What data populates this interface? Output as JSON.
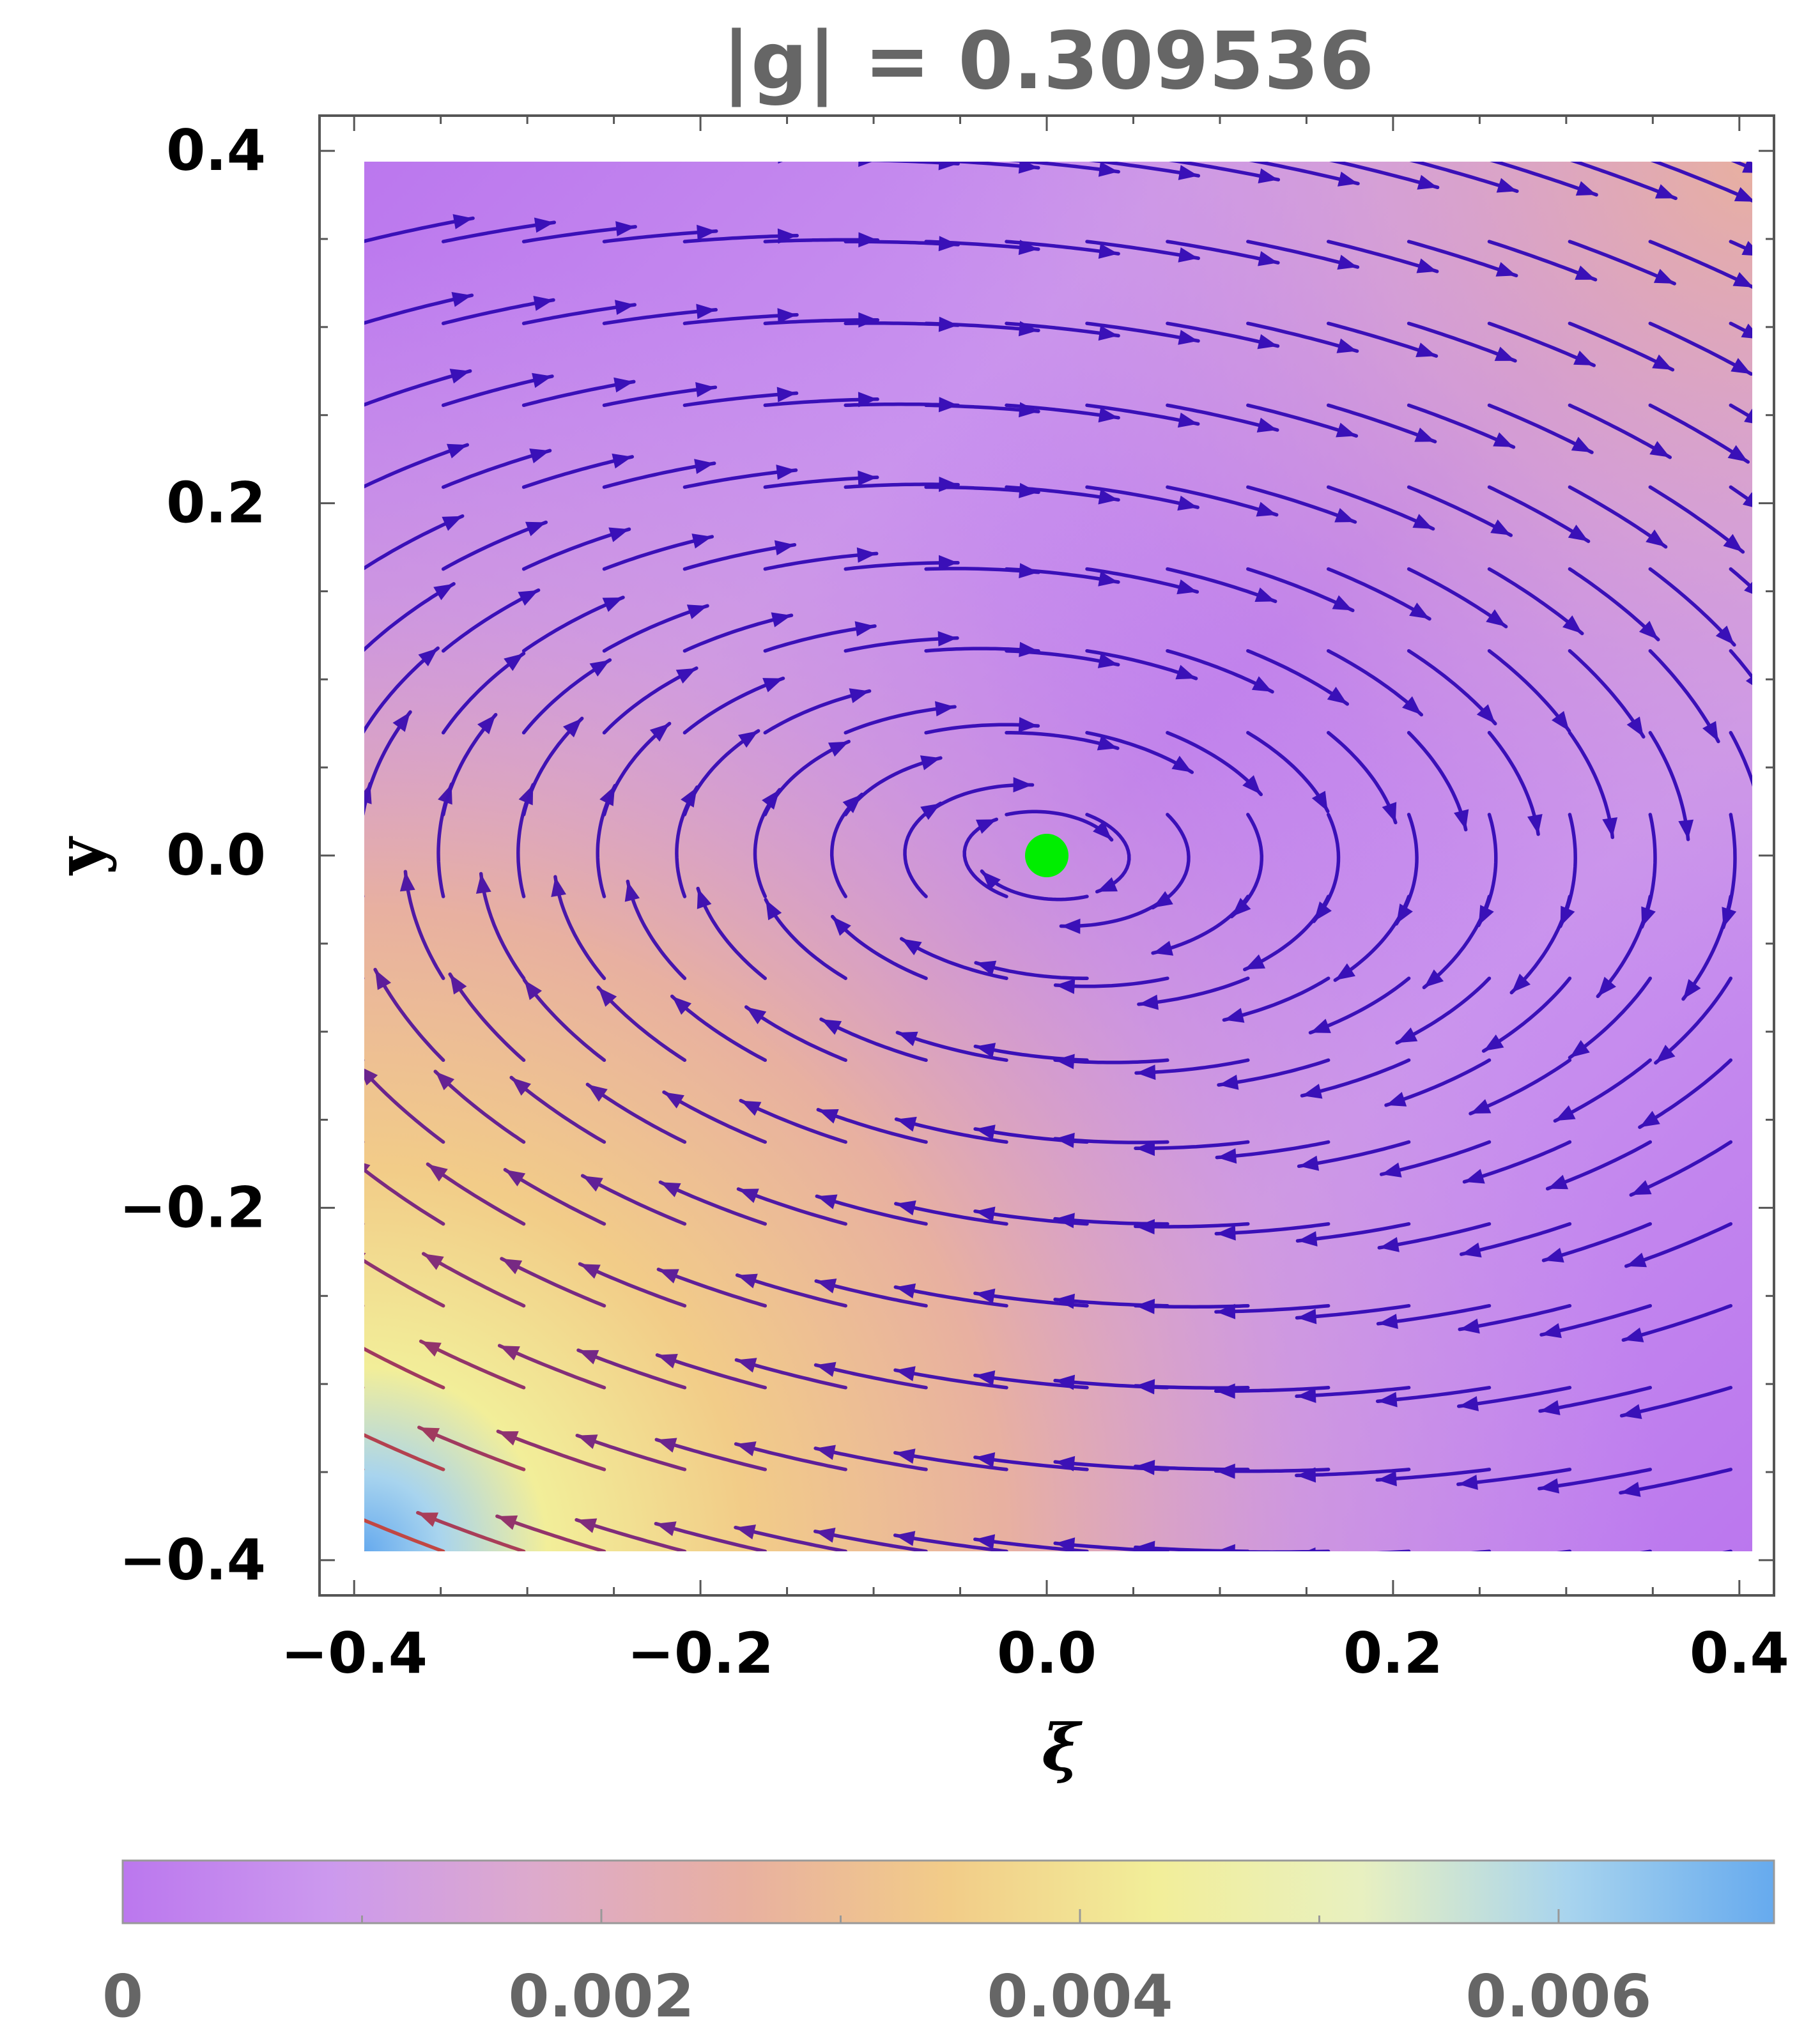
{
  "chart_data": {
    "type": "stream",
    "title": "|g| = 0.309536",
    "xlabel": "ξ",
    "ylabel": "y",
    "xlim": [
      -0.42,
      0.42
    ],
    "ylim": [
      -0.42,
      0.42
    ],
    "x_ticks": [
      -0.4,
      -0.2,
      0.0,
      0.2,
      0.4
    ],
    "x_tick_labels": [
      "−0.4",
      "−0.2",
      "0.0",
      "0.2",
      "0.4"
    ],
    "y_ticks": [
      -0.4,
      -0.2,
      0.0,
      0.2,
      0.4
    ],
    "y_tick_labels": [
      "−0.4",
      "−0.2",
      "0.0",
      "0.2",
      "0.4"
    ],
    "fixed_point": {
      "x": 0.0,
      "y": 0.0,
      "color": "#00ee00"
    },
    "flow": "stable spiral toward the origin, vector field (y, -0.1 y - 0.3 ξ)",
    "stream_color_low": "#3a10b8",
    "stream_color_high": "#f05a1a",
    "colorbar": {
      "min": 0,
      "max": 0.0069,
      "ticks": [
        0,
        0.002,
        0.004,
        0.006
      ],
      "tick_labels": [
        "0",
        "0.002",
        "0.004",
        "0.006"
      ],
      "colors": [
        "#bb77ee",
        "#cc99ee",
        "#ddaacc",
        "#e8b0a0",
        "#f2cc88",
        "#f2ee99",
        "#e8f0c0",
        "#a8d4ee",
        "#66aaee"
      ]
    }
  }
}
